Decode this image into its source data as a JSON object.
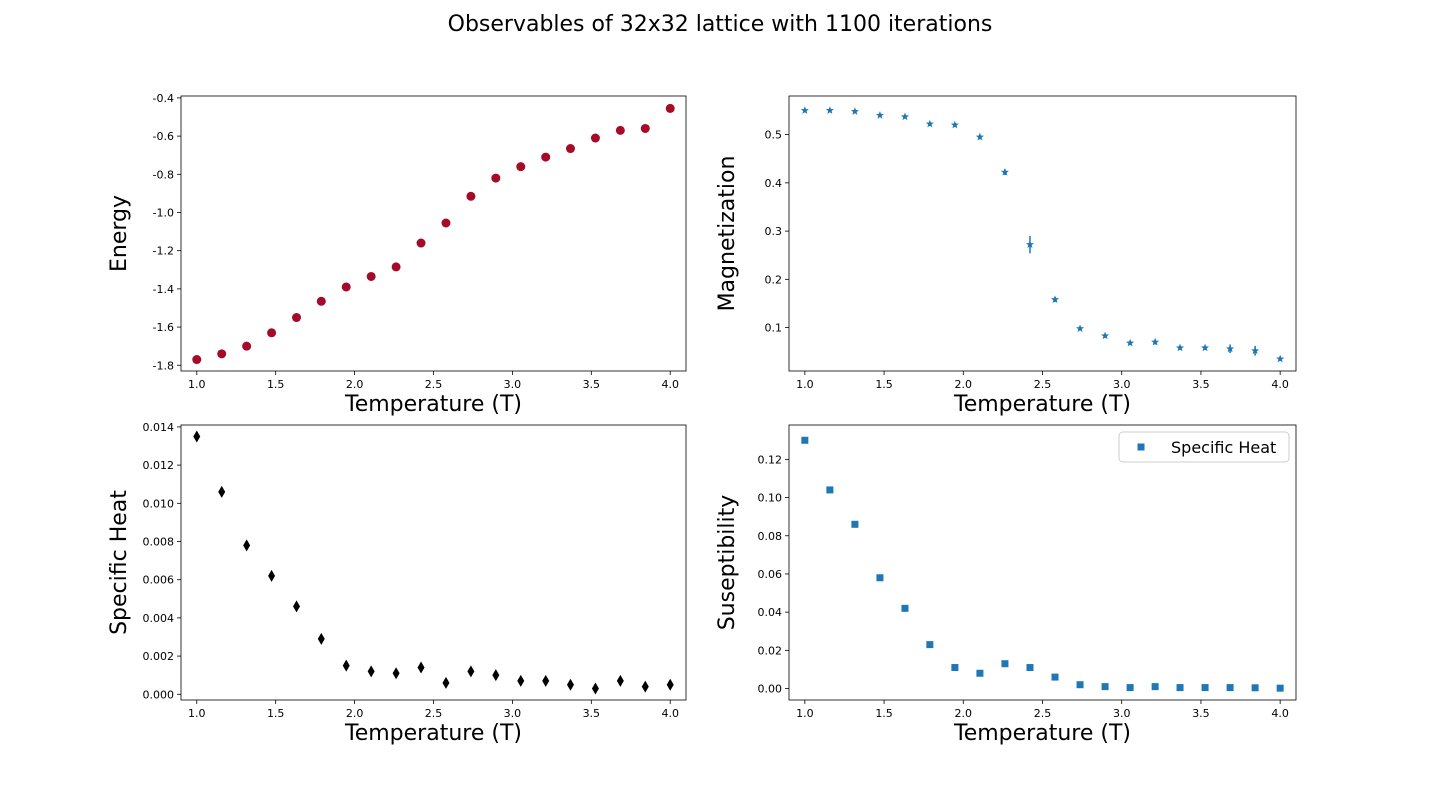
{
  "figure": {
    "title": "Observables of 32x32 lattice with 1100 iterations"
  },
  "chart_data": [
    {
      "type": "scatter",
      "title": "",
      "xlabel": "Temperature (T)",
      "ylabel": "Energy",
      "xlim": [
        0.9,
        4.1
      ],
      "ylim": [
        -1.83,
        -0.39
      ],
      "xticks": [
        "1.0",
        "1.5",
        "2.0",
        "2.5",
        "3.0",
        "3.5",
        "4.0"
      ],
      "yticks": [
        "-1.8",
        "-1.6",
        "-1.4",
        "-1.2",
        "-1.0",
        "-0.8",
        "-0.6",
        "-0.4"
      ],
      "grid": false,
      "series": [
        {
          "marker": "circle",
          "color": "#a50a28",
          "x": [
            1.0,
            1.158,
            1.316,
            1.474,
            1.632,
            1.789,
            1.947,
            2.105,
            2.263,
            2.421,
            2.579,
            2.737,
            2.895,
            3.053,
            3.211,
            3.368,
            3.526,
            3.684,
            3.842,
            4.0
          ],
          "y": [
            -1.77,
            -1.74,
            -1.7,
            -1.63,
            -1.55,
            -1.465,
            -1.39,
            -1.335,
            -1.285,
            -1.16,
            -1.055,
            -0.915,
            -0.82,
            -0.76,
            -0.71,
            -0.665,
            -0.61,
            -0.57,
            -0.56,
            -0.455
          ]
        }
      ]
    },
    {
      "type": "scatter",
      "title": "",
      "xlabel": "Temperature (T)",
      "ylabel": "Magnetization",
      "xlim": [
        0.9,
        4.1
      ],
      "ylim": [
        0.01,
        0.58
      ],
      "xticks": [
        "1.0",
        "1.5",
        "2.0",
        "2.5",
        "3.0",
        "3.5",
        "4.0"
      ],
      "yticks": [
        "0.1",
        "0.2",
        "0.3",
        "0.4",
        "0.5"
      ],
      "grid": false,
      "series": [
        {
          "marker": "star",
          "color": "#1f77b4",
          "x": [
            1.0,
            1.158,
            1.316,
            1.474,
            1.632,
            1.789,
            1.947,
            2.105,
            2.263,
            2.421,
            2.579,
            2.737,
            2.895,
            3.053,
            3.211,
            3.368,
            3.526,
            3.684,
            3.842,
            4.0
          ],
          "y": [
            0.55,
            0.55,
            0.548,
            0.54,
            0.537,
            0.522,
            0.52,
            0.495,
            0.422,
            0.272,
            0.158,
            0.098,
            0.083,
            0.068,
            0.07,
            0.058,
            0.058,
            0.056,
            0.052,
            0.035
          ],
          "yerr": [
            0.003,
            0.003,
            0.003,
            0.003,
            0.003,
            0.004,
            0.004,
            0.005,
            0.006,
            0.018,
            0.005,
            0.004,
            0.004,
            0.004,
            0.005,
            0.004,
            0.004,
            0.009,
            0.01,
            0.004
          ]
        }
      ]
    },
    {
      "type": "scatter",
      "title": "",
      "xlabel": "Temperature (T)",
      "ylabel": "Specific Heat",
      "xlim": [
        0.9,
        4.1
      ],
      "ylim": [
        -0.0003,
        0.0141
      ],
      "xticks": [
        "1.0",
        "1.5",
        "2.0",
        "2.5",
        "3.0",
        "3.5",
        "4.0"
      ],
      "yticks": [
        "0.000",
        "0.002",
        "0.004",
        "0.006",
        "0.008",
        "0.010",
        "0.012",
        "0.014"
      ],
      "grid": false,
      "series": [
        {
          "marker": "thin-diamond",
          "color": "#000000",
          "x": [
            1.0,
            1.158,
            1.316,
            1.474,
            1.632,
            1.789,
            1.947,
            2.105,
            2.263,
            2.421,
            2.579,
            2.737,
            2.895,
            3.053,
            3.211,
            3.368,
            3.526,
            3.684,
            3.842,
            4.0
          ],
          "y": [
            0.0135,
            0.0106,
            0.0078,
            0.0062,
            0.0046,
            0.0029,
            0.0015,
            0.0012,
            0.0011,
            0.0014,
            0.0006,
            0.0012,
            0.001,
            0.0007,
            0.0007,
            0.0005,
            0.0003,
            0.0007,
            0.0004,
            0.0005
          ]
        }
      ]
    },
    {
      "type": "scatter",
      "title": "",
      "xlabel": "Temperature (T)",
      "ylabel": "Suseptibility",
      "xlim": [
        0.9,
        4.1
      ],
      "ylim": [
        -0.006,
        0.138
      ],
      "xticks": [
        "1.0",
        "1.5",
        "2.0",
        "2.5",
        "3.0",
        "3.5",
        "4.0"
      ],
      "yticks": [
        "0.00",
        "0.02",
        "0.04",
        "0.06",
        "0.08",
        "0.10",
        "0.12"
      ],
      "grid": false,
      "legend": "top-right",
      "series": [
        {
          "name": "Specific Heat",
          "marker": "square",
          "color": "#1f77b4",
          "x": [
            1.0,
            1.158,
            1.316,
            1.474,
            1.632,
            1.789,
            1.947,
            2.105,
            2.263,
            2.421,
            2.579,
            2.737,
            2.895,
            3.053,
            3.211,
            3.368,
            3.526,
            3.684,
            3.842,
            4.0
          ],
          "y": [
            0.13,
            0.104,
            0.086,
            0.058,
            0.042,
            0.023,
            0.011,
            0.008,
            0.013,
            0.011,
            0.006,
            0.002,
            0.001,
            0.0005,
            0.001,
            0.0005,
            0.0005,
            0.0005,
            0.0004,
            0.0002
          ]
        }
      ]
    }
  ]
}
